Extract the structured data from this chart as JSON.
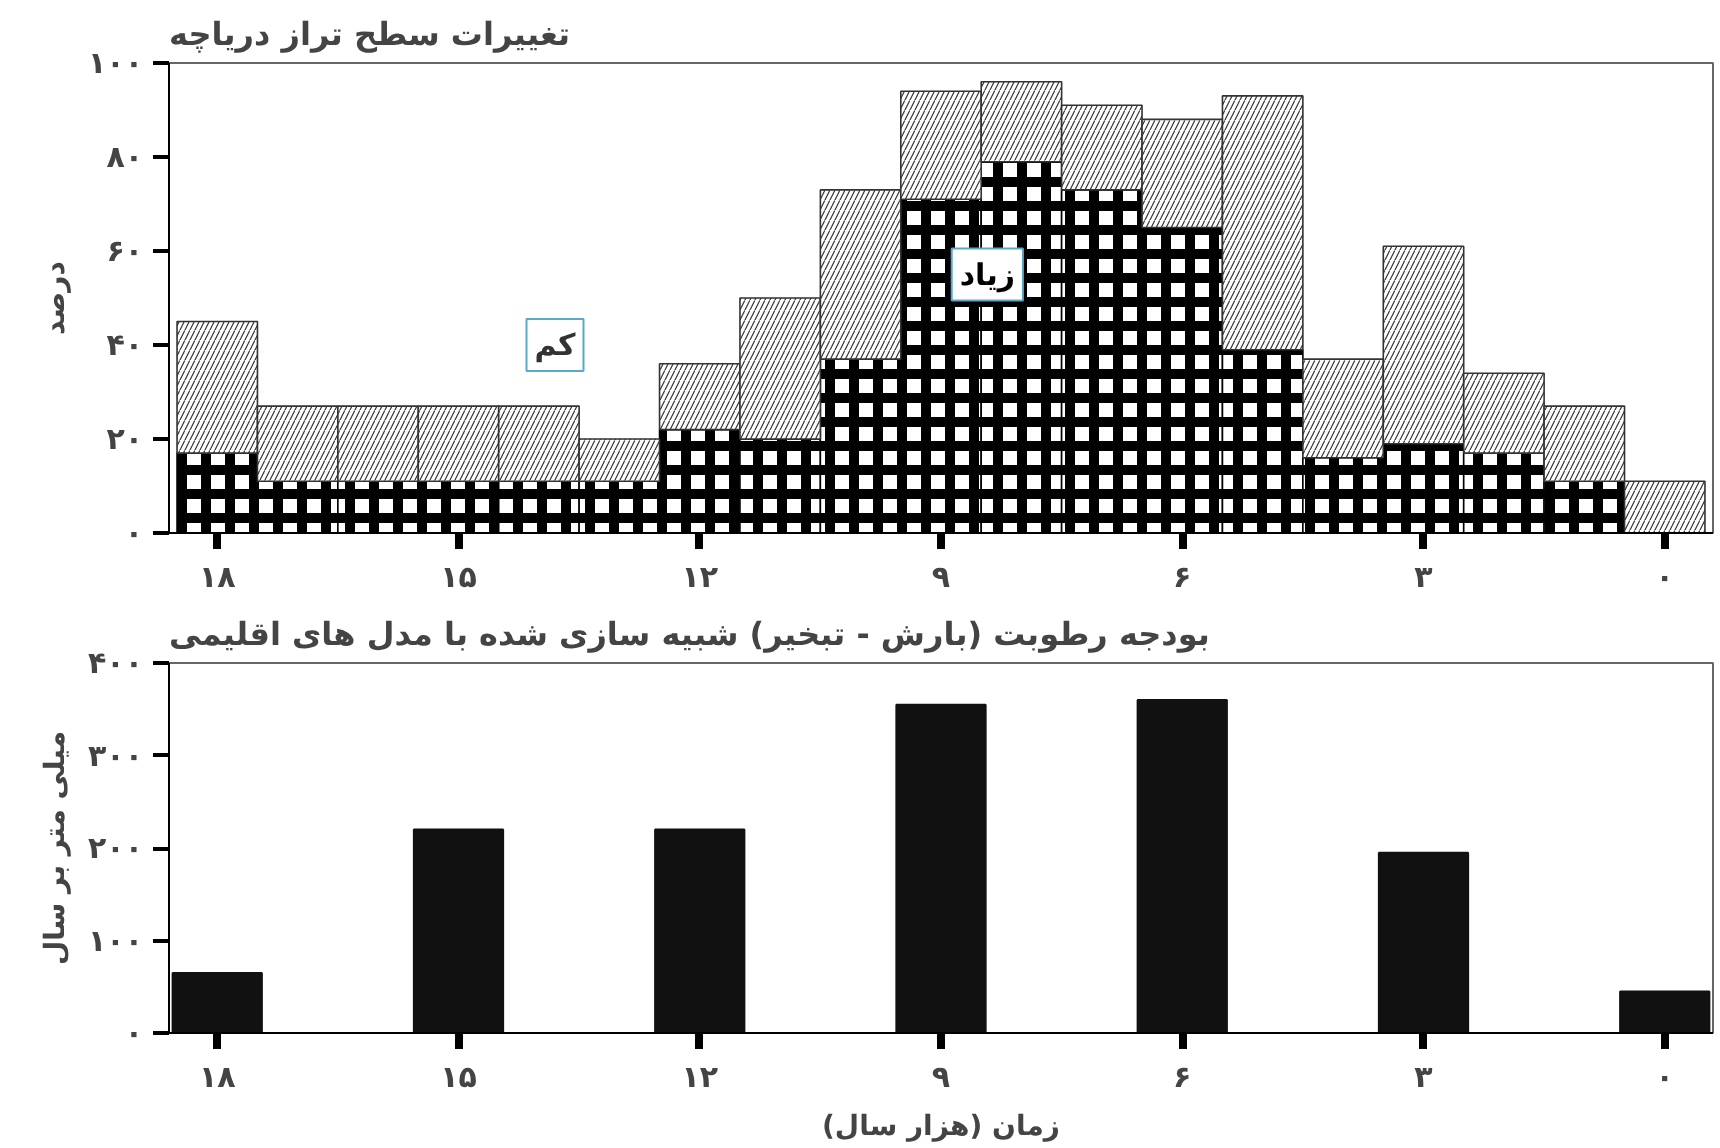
{
  "chart_data": [
    {
      "type": "bar",
      "stacked": true,
      "title": "تغییرات سطح تراز دریاچه",
      "ylabel": "درصد",
      "x": [
        18,
        17,
        16,
        15,
        14,
        13,
        12,
        11,
        10,
        9,
        8,
        7,
        6,
        5,
        4,
        3,
        2,
        1,
        0
      ],
      "series": [
        {
          "name": "زیاد",
          "color": "#000000",
          "values": [
            17,
            11,
            11,
            11,
            11,
            11,
            22,
            20,
            37,
            71,
            79,
            73,
            65,
            39,
            16,
            19,
            17,
            11,
            0
          ]
        },
        {
          "name": "کم",
          "color": "#333333",
          "values": [
            28,
            16,
            16,
            16,
            16,
            9,
            14,
            30,
            36,
            23,
            17,
            18,
            23,
            54,
            21,
            42,
            17,
            16,
            11
          ]
        }
      ],
      "xlim": [
        18.6,
        -0.6
      ],
      "xticks": [
        {
          "value": 18,
          "label": "۱۸"
        },
        {
          "value": 15,
          "label": "۱۵"
        },
        {
          "value": 12,
          "label": "۱۲"
        },
        {
          "value": 9,
          "label": "۹"
        },
        {
          "value": 6,
          "label": "۶"
        },
        {
          "value": 3,
          "label": "۳"
        },
        {
          "value": 0,
          "label": "۰"
        }
      ],
      "ylim": [
        0,
        100
      ],
      "yticks": [
        {
          "value": 0,
          "label": "۰"
        },
        {
          "value": 20,
          "label": "۲۰"
        },
        {
          "value": 40,
          "label": "۴۰"
        },
        {
          "value": 60,
          "label": "۶۰"
        },
        {
          "value": 80,
          "label": "۸۰"
        },
        {
          "value": 100,
          "label": "۱۰۰"
        }
      ],
      "grid": false
    },
    {
      "type": "bar",
      "title": "بودجه رطوبت (بارش - تبخیر) شبیه سازی شده با مدل های اقلیمی",
      "xlabel": "زمان (هزار سال)",
      "ylabel": "میلی متر بر سال",
      "x": [
        18,
        15,
        12,
        9,
        6,
        3,
        0
      ],
      "values": [
        65,
        220,
        220,
        355,
        360,
        195,
        45
      ],
      "color": "#111111",
      "xlim": [
        18.6,
        -0.6
      ],
      "xticks": [
        {
          "value": 18,
          "label": "۱۸"
        },
        {
          "value": 15,
          "label": "۱۵"
        },
        {
          "value": 12,
          "label": "۱۲"
        },
        {
          "value": 9,
          "label": "۹"
        },
        {
          "value": 6,
          "label": "۶"
        },
        {
          "value": 3,
          "label": "۳"
        },
        {
          "value": 0,
          "label": "۰"
        }
      ],
      "ylim": [
        0,
        400
      ],
      "yticks": [
        {
          "value": 0,
          "label": "۰"
        },
        {
          "value": 100,
          "label": "۱۰۰"
        },
        {
          "value": 200,
          "label": "۲۰۰"
        },
        {
          "value": 300,
          "label": "۳۰۰"
        },
        {
          "value": 400,
          "label": "۴۰۰"
        }
      ],
      "grid": false
    }
  ]
}
